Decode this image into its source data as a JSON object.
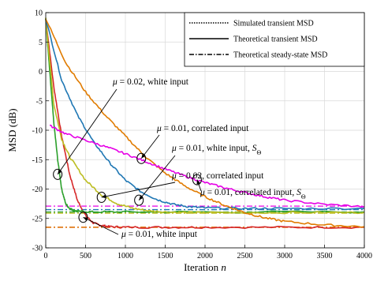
{
  "chart_data": {
    "type": "line",
    "title": "",
    "xlabel": "Iteration n",
    "ylabel": "MSD (dB)",
    "xlim": [
      0,
      4000
    ],
    "ylim": [
      -30,
      10
    ],
    "xticks": [
      0,
      500,
      1000,
      1500,
      2000,
      2500,
      3000,
      3500,
      4000
    ],
    "xtick_labels": [
      "0",
      "500",
      "1000",
      "1500",
      "2000",
      "2500",
      "3000",
      "3500",
      "4000"
    ],
    "yticks": [
      -30,
      -25,
      -20,
      -15,
      -10,
      -5,
      0,
      5,
      10
    ],
    "ytick_labels": [
      "-30",
      "-25",
      "-20",
      "-15",
      "-10",
      "-5",
      "0",
      "5",
      "10"
    ],
    "grid": true,
    "legend_position": "top-right",
    "legend": [
      {
        "label": "Simulated transient MSD",
        "style": "dotted"
      },
      {
        "label": "Theoretical transient MSD",
        "style": "solid"
      },
      {
        "label": "Theoretical steady-state MSD",
        "style": "dashdot"
      }
    ],
    "series": [
      {
        "color": "#d62728",
        "x": [
          0,
          100,
          200,
          300,
          400,
          500,
          600,
          700,
          800,
          1000,
          1500,
          2000,
          3000,
          4000
        ],
        "values": [
          9,
          -2.5,
          -11,
          -17.5,
          -22,
          -24.5,
          -25.8,
          -26.2,
          -26.4,
          -26.5,
          -26.5,
          -26.5,
          -26.5,
          -26.5
        ],
        "steady_state": -26.5
      },
      {
        "color": "#2ca02c",
        "x": [
          0,
          50,
          100,
          150,
          200,
          250,
          300,
          350,
          400,
          600,
          1000,
          2000,
          4000
        ],
        "values": [
          9,
          0,
          -8.5,
          -15,
          -20,
          -22.5,
          -23.3,
          -23.6,
          -23.8,
          -23.9,
          -23.9,
          -23.9,
          -23.9
        ],
        "steady_state": -23.9
      },
      {
        "color": "#bcbd22",
        "x": [
          0,
          100,
          200,
          300,
          500,
          700,
          900,
          1100,
          1300,
          1500,
          1800,
          2000,
          3000,
          4000
        ],
        "values": [
          9,
          -5.5,
          -11.5,
          -14.5,
          -18.5,
          -21,
          -22.5,
          -23.3,
          -23.7,
          -23.9,
          -24,
          -24,
          -24,
          -24
        ],
        "steady_state": -24.1
      },
      {
        "color": "#1f77b4",
        "x": [
          0,
          200,
          400,
          600,
          800,
          1000,
          1200,
          1400,
          1600,
          1800,
          2000,
          2500,
          3000,
          4000
        ],
        "values": [
          9,
          -1.5,
          -7.5,
          -12,
          -15.5,
          -18.5,
          -20.5,
          -21.8,
          -22.6,
          -23,
          -23.2,
          -23.3,
          -23.3,
          -23.3
        ],
        "steady_state": -23.5
      },
      {
        "color": "#e07b00",
        "x": [
          0,
          250,
          500,
          750,
          1000,
          1250,
          1500,
          1750,
          2000,
          2250,
          2500,
          2750,
          3000,
          3500,
          4000
        ],
        "values": [
          9,
          1.5,
          -3.5,
          -7.5,
          -11,
          -14.5,
          -17.3,
          -19.5,
          -21.3,
          -22.8,
          -24,
          -24.9,
          -25.5,
          -26.1,
          -26.4
        ],
        "steady_state": -26.5
      },
      {
        "color": "#e600e6",
        "x": [
          50,
          250,
          500,
          750,
          1000,
          1250,
          1500,
          1750,
          2000,
          2250,
          2500,
          2750,
          3000,
          3500,
          4000
        ],
        "values": [
          -9.2,
          -10.6,
          -11.7,
          -12.8,
          -14,
          -15.3,
          -16.6,
          -17.8,
          -18.9,
          -19.8,
          -20.6,
          -21.3,
          -21.9,
          -22.6,
          -23
        ],
        "steady_state": -22.9
      }
    ],
    "annotations": [
      {
        "lead": "μ = 0.02, white input",
        "mu": "0.02",
        "kind": "white input",
        "cond": "",
        "x": 150,
        "y": -17.5
      },
      {
        "lead": "μ = 0.01, correlated input",
        "mu": "0.01",
        "kind": "correlated input",
        "cond": "",
        "x": 1200,
        "y": -14.8
      },
      {
        "lead": "μ = 0.01, white input, S_Θ",
        "mu": "0.01",
        "kind": "white input",
        "cond": "S",
        "x": 1170,
        "y": -21.9
      },
      {
        "lead": "μ = 0.02, correlated input",
        "mu": "0.02",
        "kind": "correlated input",
        "cond": "",
        "x": 700,
        "y": -21.4
      },
      {
        "lead": "μ = 0.01, correlated input, S_Θ",
        "mu": "0.01",
        "kind": "correlated input",
        "cond": "S",
        "x": 1900,
        "y": -18.4
      },
      {
        "lead": "μ = 0.01, white input",
        "mu": "0.01",
        "kind": "white input",
        "cond": "",
        "x": 470,
        "y": -24.8
      }
    ]
  }
}
